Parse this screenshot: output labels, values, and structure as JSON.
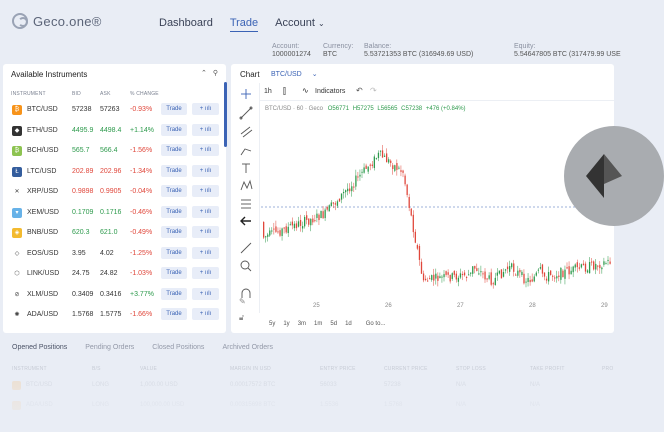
{
  "header": {
    "logo_text": "Geco.one®",
    "nav": {
      "dashboard": "Dashboard",
      "trade": "Trade",
      "account": "Account"
    }
  },
  "account_bar": {
    "account": {
      "label": "Account:",
      "value": "1000001274"
    },
    "currency": {
      "label": "Currency:",
      "value": "BTC"
    },
    "balance": {
      "label": "Balance:",
      "value": "5.53721353 BTC (316949.69 USD)"
    },
    "equity": {
      "label": "Equity:",
      "value": "5.54647805 BTC (317479.99 USE"
    }
  },
  "instruments": {
    "title": "Available Instruments",
    "columns": {
      "instrument": "INSTRUMENT",
      "bid": "BID",
      "ask": "ASK",
      "change": "% CHANGE"
    },
    "trade_label": "Trade",
    "plus_label": "+ ıılı",
    "rows": [
      {
        "symbol": "BTC/USD",
        "bid": "57238",
        "ask": "57263",
        "change": "-0.93%",
        "trend": "down",
        "bid_trend": "neutral",
        "icon": "bitcoin-icon",
        "color": "#f7931a",
        "glyph": "₿"
      },
      {
        "symbol": "ETH/USD",
        "bid": "4495.9",
        "ask": "4498.4",
        "change": "+1.14%",
        "trend": "up",
        "bid_trend": "up",
        "icon": "ethereum-icon",
        "color": "#333333",
        "glyph": "◆"
      },
      {
        "symbol": "BCH/USD",
        "bid": "565.7",
        "ask": "566.4",
        "change": "-1.56%",
        "trend": "down",
        "bid_trend": "up",
        "icon": "bitcoin-cash-icon",
        "color": "#8dc351",
        "glyph": "₿"
      },
      {
        "symbol": "LTC/USD",
        "bid": "202.89",
        "ask": "202.96",
        "change": "-1.34%",
        "trend": "down",
        "bid_trend": "down",
        "icon": "litecoin-icon",
        "color": "#345d9d",
        "glyph": "Ł"
      },
      {
        "symbol": "XRP/USD",
        "bid": "0.9898",
        "ask": "0.9905",
        "change": "-0.04%",
        "trend": "down",
        "bid_trend": "down",
        "icon": "xrp-icon",
        "color": "#ffffff",
        "glyph": "✕"
      },
      {
        "symbol": "XEM/USD",
        "bid": "0.1709",
        "ask": "0.1716",
        "change": "-0.46%",
        "trend": "down",
        "bid_trend": "up",
        "icon": "nem-icon",
        "color": "#67b2e8",
        "glyph": "▾"
      },
      {
        "symbol": "BNB/USD",
        "bid": "620.3",
        "ask": "621.0",
        "change": "-0.49%",
        "trend": "down",
        "bid_trend": "up",
        "icon": "binance-icon",
        "color": "#f3ba2f",
        "glyph": "◈"
      },
      {
        "symbol": "EOS/USD",
        "bid": "3.95",
        "ask": "4.02",
        "change": "-1.25%",
        "trend": "down",
        "bid_trend": "neutral",
        "icon": "eos-icon",
        "color": "#ffffff",
        "glyph": "◇"
      },
      {
        "symbol": "LINK/USD",
        "bid": "24.75",
        "ask": "24.82",
        "change": "-1.03%",
        "trend": "down",
        "bid_trend": "neutral",
        "icon": "chainlink-icon",
        "color": "#ffffff",
        "glyph": "⬡"
      },
      {
        "symbol": "XLM/USD",
        "bid": "0.3409",
        "ask": "0.3416",
        "change": "+3.77%",
        "trend": "up",
        "bid_trend": "neutral",
        "icon": "stellar-icon",
        "color": "#ffffff",
        "glyph": "⊘"
      },
      {
        "symbol": "ADA/USD",
        "bid": "1.5768",
        "ask": "1.5775",
        "change": "-1.66%",
        "trend": "down",
        "bid_trend": "neutral",
        "icon": "cardano-icon",
        "color": "#ffffff",
        "glyph": "✺"
      }
    ]
  },
  "chart_panel": {
    "tab_label": "Chart",
    "symbol_select": "BTC/USD",
    "timeframe": "1h",
    "indicators_label": "Indicators",
    "legend": "BTC/USD · 60 · Geco",
    "ohlc": {
      "o": "O56771",
      "h": "H57275",
      "l": "L56565",
      "c": "C57238",
      "change": "+476 (+0.84%)"
    },
    "x_ticks": [
      "25",
      "26",
      "27",
      "28",
      "29"
    ],
    "ranges": [
      "5y",
      "1y",
      "3m",
      "1m",
      "5d",
      "1d",
      "Go to..."
    ]
  },
  "chart_data": {
    "type": "candlestick",
    "title": "BTC/USD · 60 · Geco",
    "x_ticks": [
      "25",
      "26",
      "27",
      "28",
      "29"
    ],
    "ohlc_last": {
      "open": 56771,
      "high": 57275,
      "low": 56565,
      "close": 57238
    }
  },
  "bottom": {
    "tabs": [
      "Opened Positions",
      "Pending Orders",
      "Closed Positions",
      "Archived Orders"
    ],
    "columns": [
      "INSTRUMENT",
      "B/S",
      "VALUE",
      "MARGIN IN USD",
      "ENTRY PRICE",
      "CURRENT PRICE",
      "STOP LOSS",
      "TAKE PROFIT",
      "PRO"
    ],
    "rows": [
      {
        "instrument": "BTC/USD",
        "bs": "LONG",
        "value": "1,000.00 USD",
        "margin": "0.00017572 BTC",
        "entry": "56033",
        "current": "57238",
        "sl": "N/A",
        "tp": "N/A"
      },
      {
        "instrument": "ADA/USD",
        "bs": "LONG",
        "value": "100,000.00 USD",
        "margin": "0.00315698 BTC",
        "entry": "1.5536",
        "current": "1.5768",
        "sl": "N/A",
        "tp": "N/A"
      }
    ]
  },
  "colors": {
    "accent": "#3b63b5",
    "up": "#2d9a4c",
    "down": "#e0473b",
    "background": "#e9edf5"
  }
}
